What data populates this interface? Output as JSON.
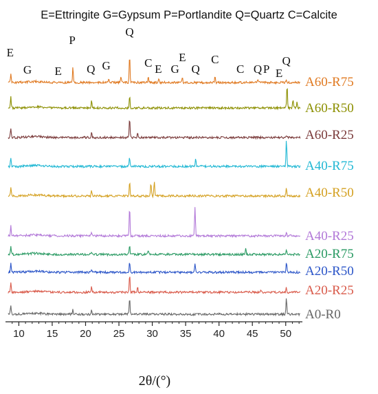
{
  "chart_data": {
    "type": "line",
    "title": "E=Ettringite G=Gypsum P=Portlandite Q=Quartz C=Calcite",
    "xlabel": "2θ/(°)",
    "ylabel": "",
    "xlim": [
      8,
      52.5
    ],
    "xticks": [
      10,
      15,
      20,
      25,
      30,
      35,
      40,
      45,
      50
    ],
    "grid": false,
    "legend": "right, inline labels",
    "phase_labels": [
      {
        "text": "E",
        "x": 8.7
      },
      {
        "text": "G",
        "x": 11.3
      },
      {
        "text": "E",
        "x": 15.9
      },
      {
        "text": "P",
        "x": 18.0
      },
      {
        "text": "Q",
        "x": 20.8
      },
      {
        "text": "G",
        "x": 23.1
      },
      {
        "text": "Q",
        "x": 26.6
      },
      {
        "text": "C",
        "x": 29.4
      },
      {
        "text": "E",
        "x": 30.9
      },
      {
        "text": "G",
        "x": 33.4
      },
      {
        "text": "E",
        "x": 34.5
      },
      {
        "text": "Q",
        "x": 36.5
      },
      {
        "text": "C",
        "x": 39.4
      },
      {
        "text": "C",
        "x": 43.2
      },
      {
        "text": "Q",
        "x": 45.8
      },
      {
        "text": "P",
        "x": 47.1
      },
      {
        "text": "E",
        "x": 49.0
      },
      {
        "text": "Q",
        "x": 50.1
      }
    ],
    "series": [
      {
        "name": "A60-R75",
        "color": "#e07a22",
        "peaks": [
          [
            8.8,
            0.45
          ],
          [
            18.1,
            0.85
          ],
          [
            23.5,
            0.2
          ],
          [
            25.3,
            0.35
          ],
          [
            26.6,
            1.5
          ],
          [
            29.4,
            0.35
          ],
          [
            31.0,
            0.2
          ],
          [
            34.5,
            0.3
          ],
          [
            39.4,
            0.3
          ],
          [
            45.8,
            0.15
          ],
          [
            50.1,
            0.2
          ]
        ]
      },
      {
        "name": "A60-R50",
        "color": "#8c8f00",
        "peaks": [
          [
            8.8,
            0.6
          ],
          [
            20.9,
            0.45
          ],
          [
            26.6,
            0.7
          ],
          [
            50.2,
            1.3
          ],
          [
            51.1,
            0.5
          ],
          [
            51.7,
            0.3
          ]
        ]
      },
      {
        "name": "A60-R25",
        "color": "#7a3a3a",
        "peaks": [
          [
            8.8,
            0.55
          ],
          [
            20.9,
            0.35
          ],
          [
            26.6,
            1.1
          ],
          [
            27.8,
            0.2
          ],
          [
            50.1,
            0.15
          ]
        ]
      },
      {
        "name": "A40-R75",
        "color": "#22b8d4",
        "peaks": [
          [
            8.8,
            0.5
          ],
          [
            26.6,
            0.5
          ],
          [
            36.5,
            0.5
          ],
          [
            50.1,
            1.5
          ]
        ]
      },
      {
        "name": "A40-R50",
        "color": "#d4a020",
        "peaks": [
          [
            8.8,
            0.5
          ],
          [
            20.9,
            0.3
          ],
          [
            26.6,
            0.8
          ],
          [
            29.8,
            0.75
          ],
          [
            30.3,
            0.8
          ],
          [
            50.1,
            0.4
          ]
        ]
      },
      {
        "name": "A40-R25",
        "color": "#b278d8",
        "peaks": [
          [
            8.8,
            0.6
          ],
          [
            20.9,
            0.2
          ],
          [
            26.6,
            1.6
          ],
          [
            36.4,
            1.6
          ],
          [
            50.1,
            0.2
          ]
        ]
      },
      {
        "name": "A20-R75",
        "color": "#2a9a63",
        "peaks": [
          [
            8.8,
            0.45
          ],
          [
            20.9,
            0.15
          ],
          [
            26.6,
            0.55
          ],
          [
            29.4,
            0.2
          ],
          [
            44.0,
            0.3
          ],
          [
            50.1,
            0.2
          ]
        ]
      },
      {
        "name": "A20-R50",
        "color": "#2b55c8",
        "peaks": [
          [
            8.8,
            0.5
          ],
          [
            20.9,
            0.2
          ],
          [
            26.6,
            0.6
          ],
          [
            36.4,
            0.45
          ],
          [
            50.1,
            0.55
          ]
        ]
      },
      {
        "name": "A20-R25",
        "color": "#d95a4a",
        "peaks": [
          [
            8.8,
            0.5
          ],
          [
            20.9,
            0.3
          ],
          [
            26.6,
            1.0
          ],
          [
            27.8,
            0.25
          ],
          [
            46.3,
            0.15
          ],
          [
            50.1,
            0.25
          ]
        ]
      },
      {
        "name": "A0-R0",
        "color": "#666666",
        "peaks": [
          [
            8.8,
            0.55
          ],
          [
            18.1,
            0.25
          ],
          [
            20.9,
            0.25
          ],
          [
            26.6,
            0.9
          ],
          [
            50.1,
            0.95
          ]
        ]
      }
    ]
  }
}
